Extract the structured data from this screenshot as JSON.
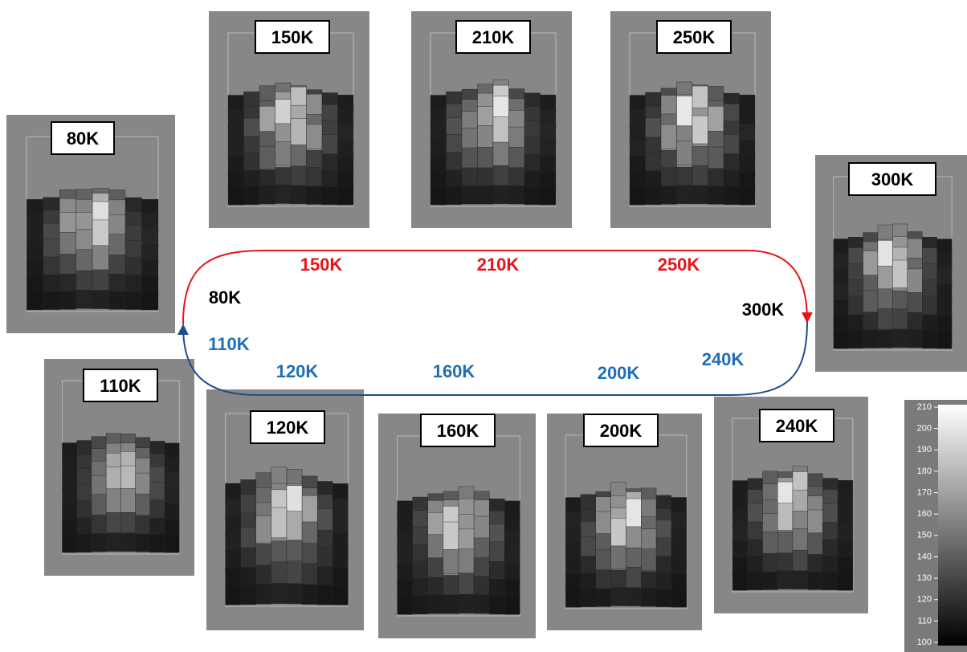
{
  "panels": [
    {
      "label": "150K"
    },
    {
      "label": "210K"
    },
    {
      "label": "250K"
    },
    {
      "label": "80K"
    },
    {
      "label": "300K"
    },
    {
      "label": "110K"
    },
    {
      "label": "120K"
    },
    {
      "label": "160K"
    },
    {
      "label": "200K"
    },
    {
      "label": "240K"
    }
  ],
  "loop": {
    "heating": [
      "150K",
      "210K",
      "250K"
    ],
    "endpoints": [
      "80K",
      "300K"
    ],
    "cooling": [
      "110K",
      "120K",
      "160K",
      "200K",
      "240K"
    ]
  },
  "colorbar": {
    "ticks": [
      210,
      200,
      190,
      180,
      170,
      160,
      150,
      140,
      130,
      120,
      110,
      100
    ]
  }
}
